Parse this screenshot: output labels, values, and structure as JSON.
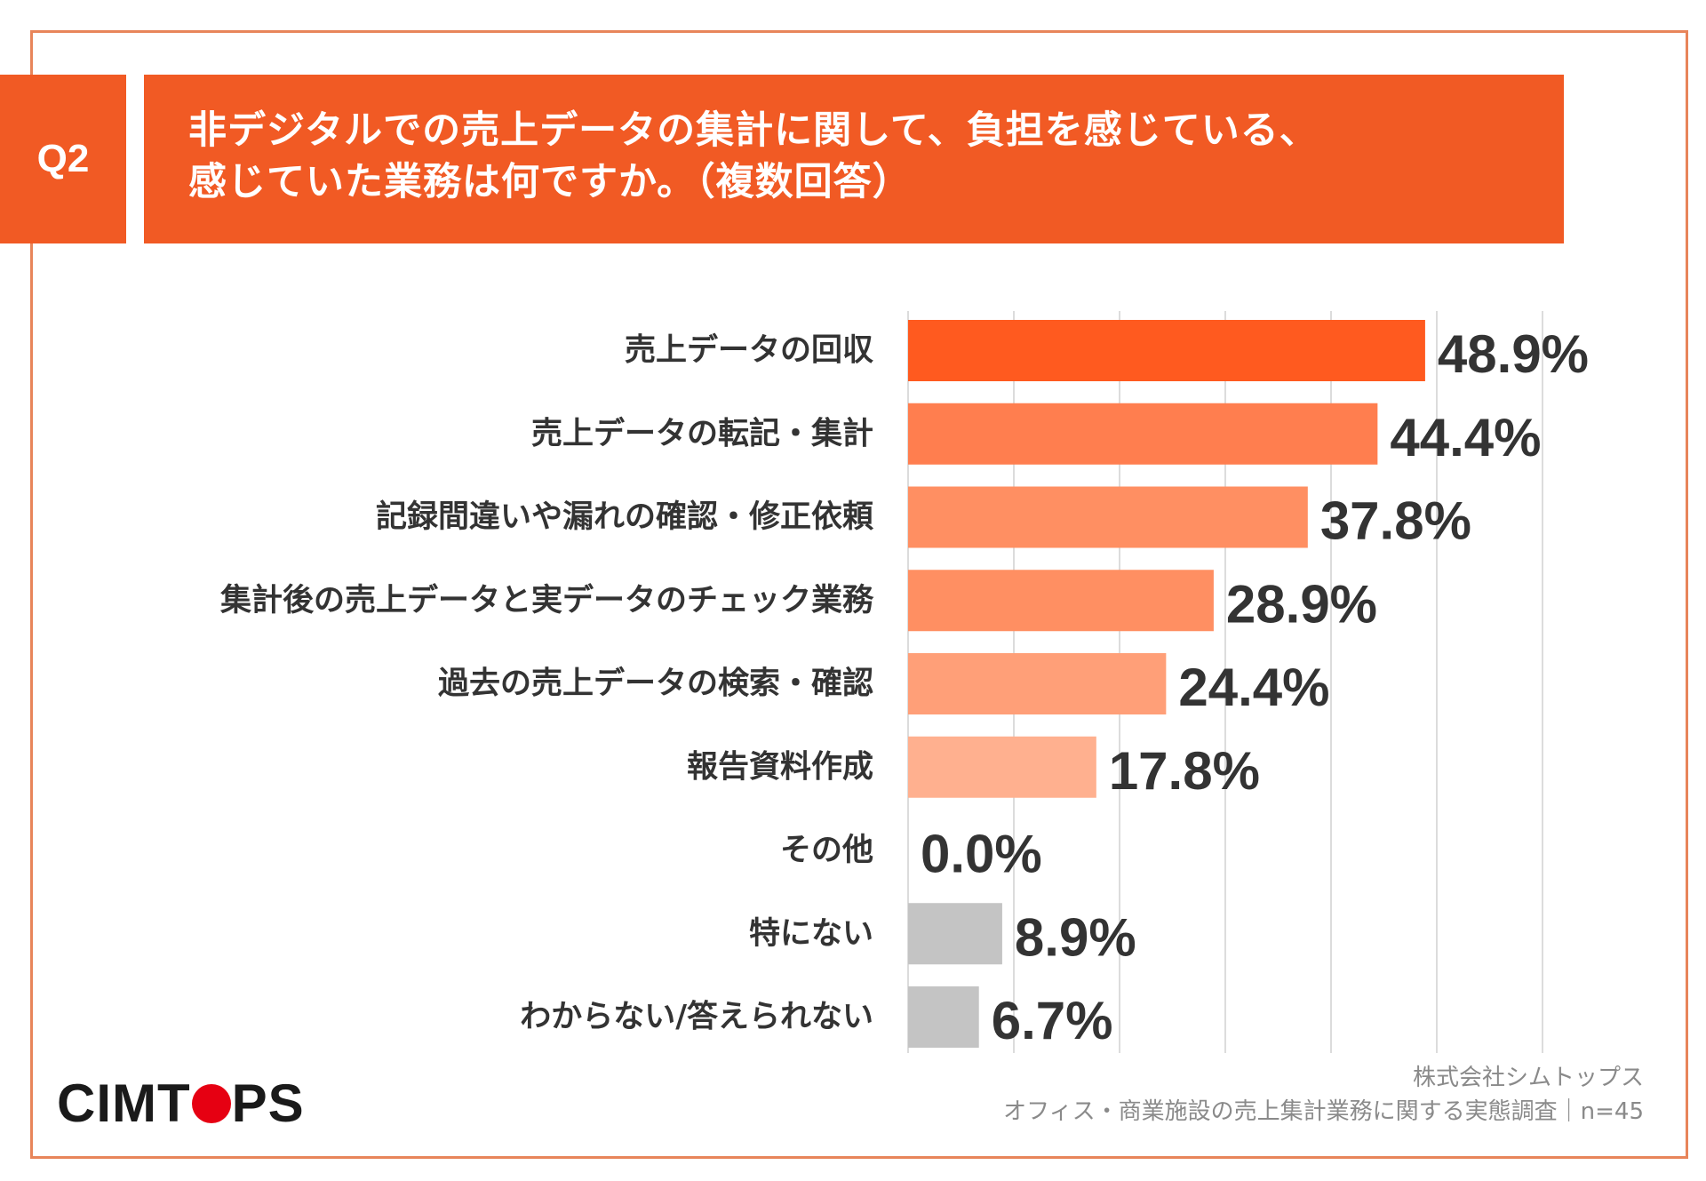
{
  "question": {
    "badge": "Q2",
    "line1": "非デジタルでの売上データの集計に関して、負担を感じている、",
    "line2": "感じていた業務は何ですか。（複数回答）"
  },
  "chart_data": {
    "type": "bar",
    "orientation": "horizontal",
    "categories": [
      "売上データの回収",
      "売上データの転記・集計",
      "記録間違いや漏れの確認・修正依頼",
      "集計後の売上データと実データのチェック業務",
      "過去の売上データの検索・確認",
      "報告資料作成",
      "その他",
      "特にない",
      "わからない/答えられない"
    ],
    "values": [
      48.9,
      44.4,
      37.8,
      28.9,
      24.4,
      17.8,
      0.0,
      8.9,
      6.7
    ],
    "value_labels": [
      "48.9%",
      "44.4%",
      "37.8%",
      "28.9%",
      "24.4%",
      "17.8%",
      "0.0%",
      "8.9%",
      "6.7%"
    ],
    "colors": [
      "#ff5a1f",
      "#ff7e4f",
      "#ff8f62",
      "#ff8f62",
      "#ff9f78",
      "#ffb08f",
      "#ffb08f",
      "#c4c4c4",
      "#c4c4c4"
    ],
    "xlim": [
      0,
      60
    ],
    "grid": true,
    "unit": "%"
  },
  "source": {
    "company": "株式会社シムトップス",
    "survey": "オフィス・商業施設の売上集計業務に関する実態調査｜n=45"
  },
  "logo": {
    "part1": "CIMT",
    "part2": "PS",
    "dot_color": "#e60012"
  }
}
